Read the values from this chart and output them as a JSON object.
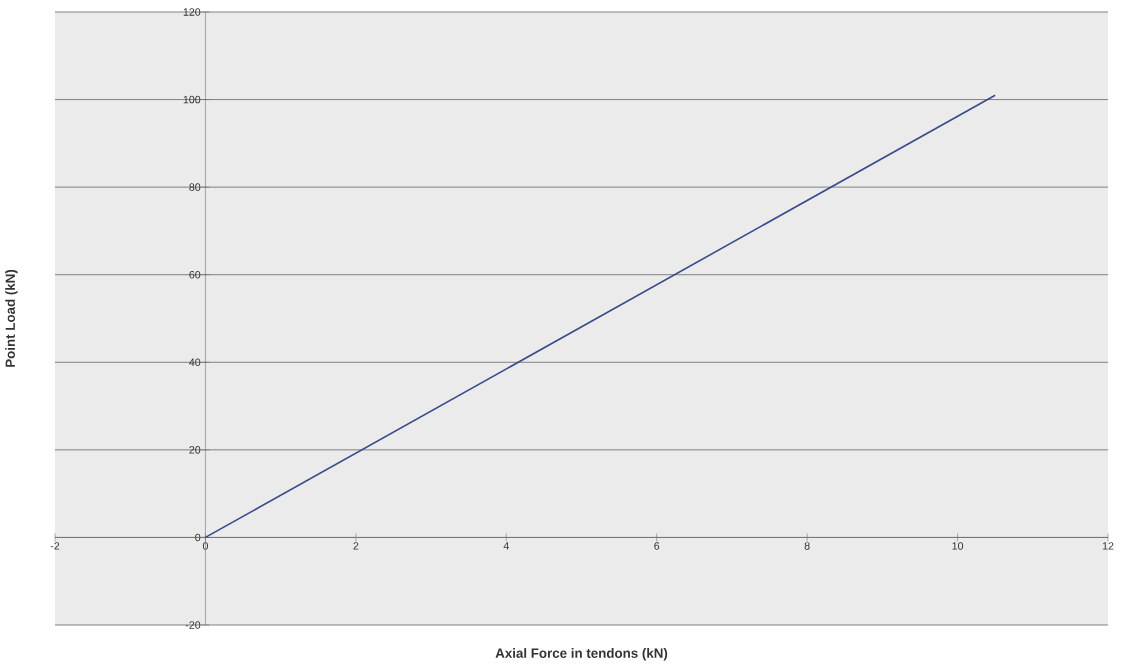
{
  "chart_data": {
    "type": "line",
    "xlabel": "Axial Force in tendons (kN)",
    "ylabel": "Point Load (kN)",
    "series": [
      {
        "color": "#3b4a8c",
        "x": [
          0,
          10.5
        ],
        "values": [
          0,
          101
        ]
      }
    ],
    "xlim": [
      -2,
      12
    ],
    "xticks": [
      -2,
      0,
      2,
      4,
      6,
      8,
      10,
      12
    ],
    "ylim": [
      -20,
      120
    ],
    "yticks": [
      -20,
      0,
      20,
      40,
      60,
      80,
      100,
      120
    ],
    "grid": "y",
    "marker": "none",
    "line_style": "solid"
  }
}
